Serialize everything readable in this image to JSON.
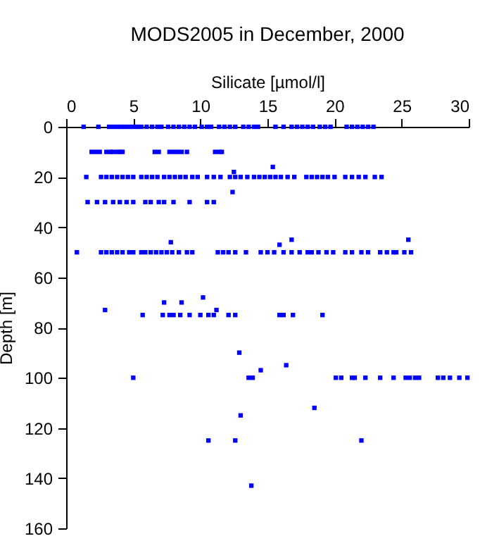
{
  "chart_data": {
    "type": "scatter",
    "title": "MODS2005 in December, 2000",
    "xlabel": "Silicate [µmol/l]",
    "ylabel": "Depth [m]",
    "x": [
      1.3,
      2.4,
      3.2,
      3.5,
      3.8,
      4.1,
      4.4,
      4.7,
      5.0,
      5.3,
      5.6,
      6.0,
      6.4,
      6.8,
      7.1,
      7.6,
      8.0,
      8.4,
      8.8,
      9.2,
      9.6,
      10.1,
      10.5,
      10.8,
      11.4,
      11.8,
      12.2,
      12.6,
      13.2,
      13.6,
      14.0,
      14.3,
      15.6,
      16.2,
      16.8,
      17.2,
      17.6,
      18.0,
      18.4,
      18.9,
      19.3,
      19.7,
      20.9,
      21.3,
      21.7,
      22.1,
      22.5,
      22.9,
      1.9,
      2.2,
      2.5,
      3.0,
      3.3,
      3.5,
      3.8,
      4.0,
      4.2,
      6.6,
      6.9,
      7.7,
      8.0,
      8.3,
      8.6,
      9.0,
      11.1,
      11.4,
      11.6,
      1.5,
      2.6,
      3.0,
      3.4,
      3.8,
      4.2,
      4.6,
      5.0,
      5.6,
      6.0,
      6.4,
      6.8,
      7.3,
      7.7,
      8.1,
      8.5,
      8.9,
      9.4,
      9.8,
      10.5,
      11.0,
      11.5,
      12.2,
      12.6,
      13.0,
      13.5,
      14.0,
      14.4,
      14.8,
      15.2,
      15.6,
      16.0,
      16.5,
      17.0,
      17.9,
      18.3,
      18.7,
      19.1,
      19.5,
      20.0,
      20.8,
      21.3,
      21.8,
      22.3,
      23.0,
      23.5,
      12.5,
      12.4,
      15.4,
      1.6,
      2.3,
      2.9,
      3.5,
      4.0,
      4.5,
      5.0,
      5.9,
      6.3,
      6.9,
      7.3,
      8.0,
      9.2,
      10.5,
      11.0,
      0.8,
      2.6,
      3.0,
      3.4,
      3.8,
      4.2,
      4.7,
      5.0,
      5.6,
      5.9,
      6.3,
      6.7,
      7.1,
      7.5,
      7.9,
      8.4,
      9.0,
      9.4,
      11.3,
      11.7,
      12.1,
      12.6,
      13.4,
      14.5,
      15.0,
      15.5,
      16.2,
      16.8,
      17.4,
      18.0,
      18.3,
      18.8,
      19.4,
      19.9,
      20.8,
      21.3,
      22.0,
      22.5,
      23.4,
      23.9,
      24.4,
      24.6,
      25.2,
      25.7,
      7.8,
      15.9,
      16.8,
      25.5,
      2.9,
      5.7,
      7.2,
      7.7,
      8.0,
      8.5,
      9.2,
      10.0,
      10.6,
      11.0,
      12.1,
      12.6,
      15.9,
      16.2,
      16.9,
      19.1,
      7.3,
      8.6,
      10.2,
      11.2,
      12.9,
      16.4,
      14.5,
      5.0,
      13.6,
      13.9,
      20.1,
      20.5,
      21.3,
      21.5,
      22.3,
      23.4,
      24.4,
      25.3,
      25.6,
      26.0,
      26.3,
      27.7,
      28.1,
      28.6,
      29.3,
      29.9,
      18.5,
      13.0,
      10.6,
      12.6,
      22.0,
      13.8
    ],
    "series": [
      {
        "color": "#0000ff",
        "values": [
          0,
          0,
          0,
          0,
          0,
          0,
          0,
          0,
          0,
          0,
          0,
          0,
          0,
          0,
          0,
          0,
          0,
          0,
          0,
          0,
          0,
          0,
          0,
          0,
          0,
          0,
          0,
          0,
          0,
          0,
          0,
          0,
          0,
          0,
          0,
          0,
          0,
          0,
          0,
          0,
          0,
          0,
          0,
          0,
          0,
          0,
          0,
          0,
          10,
          10,
          10,
          10,
          10,
          10,
          10,
          10,
          10,
          10,
          10,
          10,
          10,
          10,
          10,
          10,
          10,
          10,
          10,
          20,
          20,
          20,
          20,
          20,
          20,
          20,
          20,
          20,
          20,
          20,
          20,
          20,
          20,
          20,
          20,
          20,
          20,
          20,
          20,
          20,
          20,
          20,
          20,
          20,
          20,
          20,
          20,
          20,
          20,
          20,
          20,
          20,
          20,
          20,
          20,
          20,
          20,
          20,
          20,
          20,
          20,
          20,
          20,
          20,
          20,
          18,
          26,
          16,
          30,
          30,
          30,
          30,
          30,
          30,
          30,
          30,
          30,
          30,
          30,
          30,
          30,
          30,
          30,
          50,
          50,
          50,
          50,
          50,
          50,
          50,
          50,
          50,
          50,
          50,
          50,
          50,
          50,
          50,
          50,
          50,
          50,
          50,
          50,
          50,
          50,
          50,
          50,
          50,
          50,
          50,
          50,
          50,
          50,
          50,
          50,
          50,
          50,
          50,
          50,
          50,
          50,
          50,
          50,
          50,
          50,
          50,
          50,
          46,
          47,
          45,
          45,
          73,
          75,
          75,
          75,
          75,
          75,
          75,
          75,
          75,
          75,
          75,
          75,
          75,
          75,
          75,
          75,
          70,
          70,
          68,
          73,
          90,
          95,
          97,
          100,
          100,
          100,
          100,
          100,
          100,
          100,
          100,
          100,
          100,
          100,
          100,
          100,
          100,
          100,
          100,
          100,
          100,
          100,
          112,
          115,
          125,
          125,
          125,
          143
        ]
      }
    ],
    "marker": "square",
    "xlim": [
      0,
      30
    ],
    "xticks": [
      0,
      5,
      10,
      15,
      20,
      25,
      30
    ],
    "ylim": [
      160,
      0
    ],
    "yticks": [
      0,
      20,
      40,
      60,
      80,
      100,
      120,
      140,
      160
    ],
    "grid": false
  }
}
